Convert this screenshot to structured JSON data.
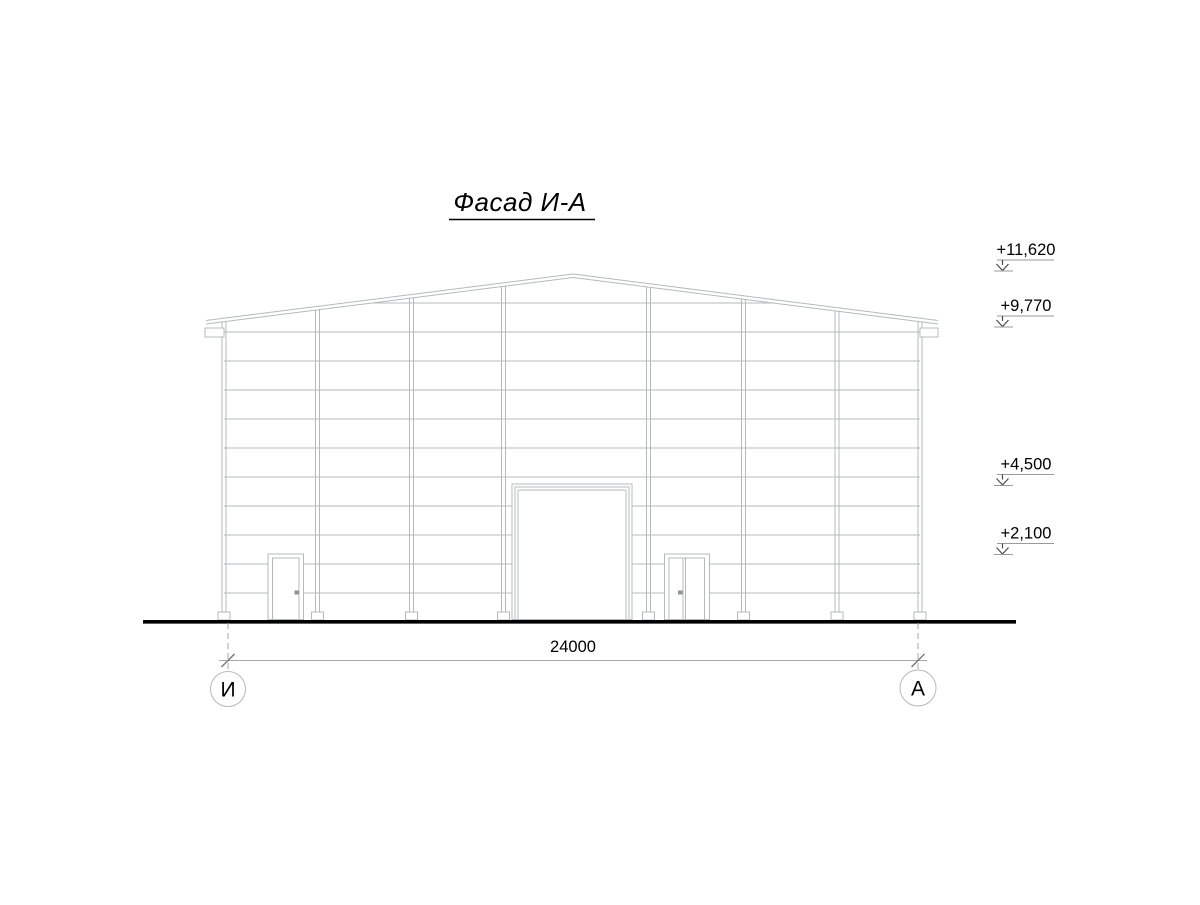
{
  "title": {
    "text": "Фасад И-А"
  },
  "drawing": {
    "dimension_label": "24000",
    "axes": {
      "left": "И",
      "right": "А"
    },
    "elevations": [
      {
        "label": "+11,620"
      },
      {
        "label": "+9,770"
      },
      {
        "label": "+4,500"
      },
      {
        "label": "+2,100"
      }
    ]
  },
  "colors": {
    "line": "#b5b9bc",
    "dim_line": "#a8a8a8",
    "tick": "#777777",
    "arrow": "#4a4a4a",
    "ground": "#000000",
    "text": "#000000"
  }
}
